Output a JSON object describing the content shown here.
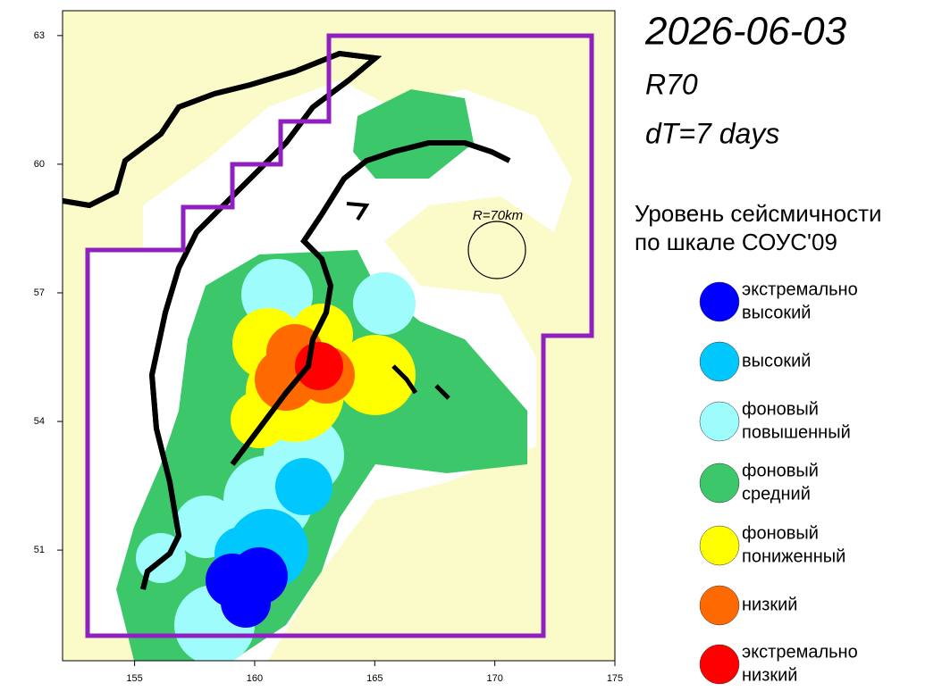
{
  "header": {
    "date": "2026-06-03",
    "index": "R70",
    "window": "dT=7 days"
  },
  "map": {
    "xlim": [
      152,
      175
    ],
    "ylim": [
      48.42,
      63.58
    ],
    "xticks": [
      155,
      160,
      165,
      170,
      175
    ],
    "yticks": [
      51,
      54,
      57,
      60,
      63
    ],
    "radius_label": "R=70km"
  },
  "legend": {
    "title": [
      "Уровень сейсмичности",
      "по шкале СОУС'09"
    ],
    "items": [
      {
        "label": [
          "экстремально",
          "высокий"
        ],
        "color": "#0000ff"
      },
      {
        "label": [
          "высокий"
        ],
        "color": "#00c8ff"
      },
      {
        "label": [
          "фоновый",
          "повышенный"
        ],
        "color": "#9ffcfc"
      },
      {
        "label": [
          "фоновый",
          "средний"
        ],
        "color": "#3cc86a"
      },
      {
        "label": [
          "фоновый",
          "пониженный"
        ],
        "color": "#ffff00"
      },
      {
        "label": [
          "низкий"
        ],
        "color": "#ff6a00"
      },
      {
        "label": [
          "экстремально",
          "низкий"
        ],
        "color": "#ff0000"
      }
    ]
  }
}
